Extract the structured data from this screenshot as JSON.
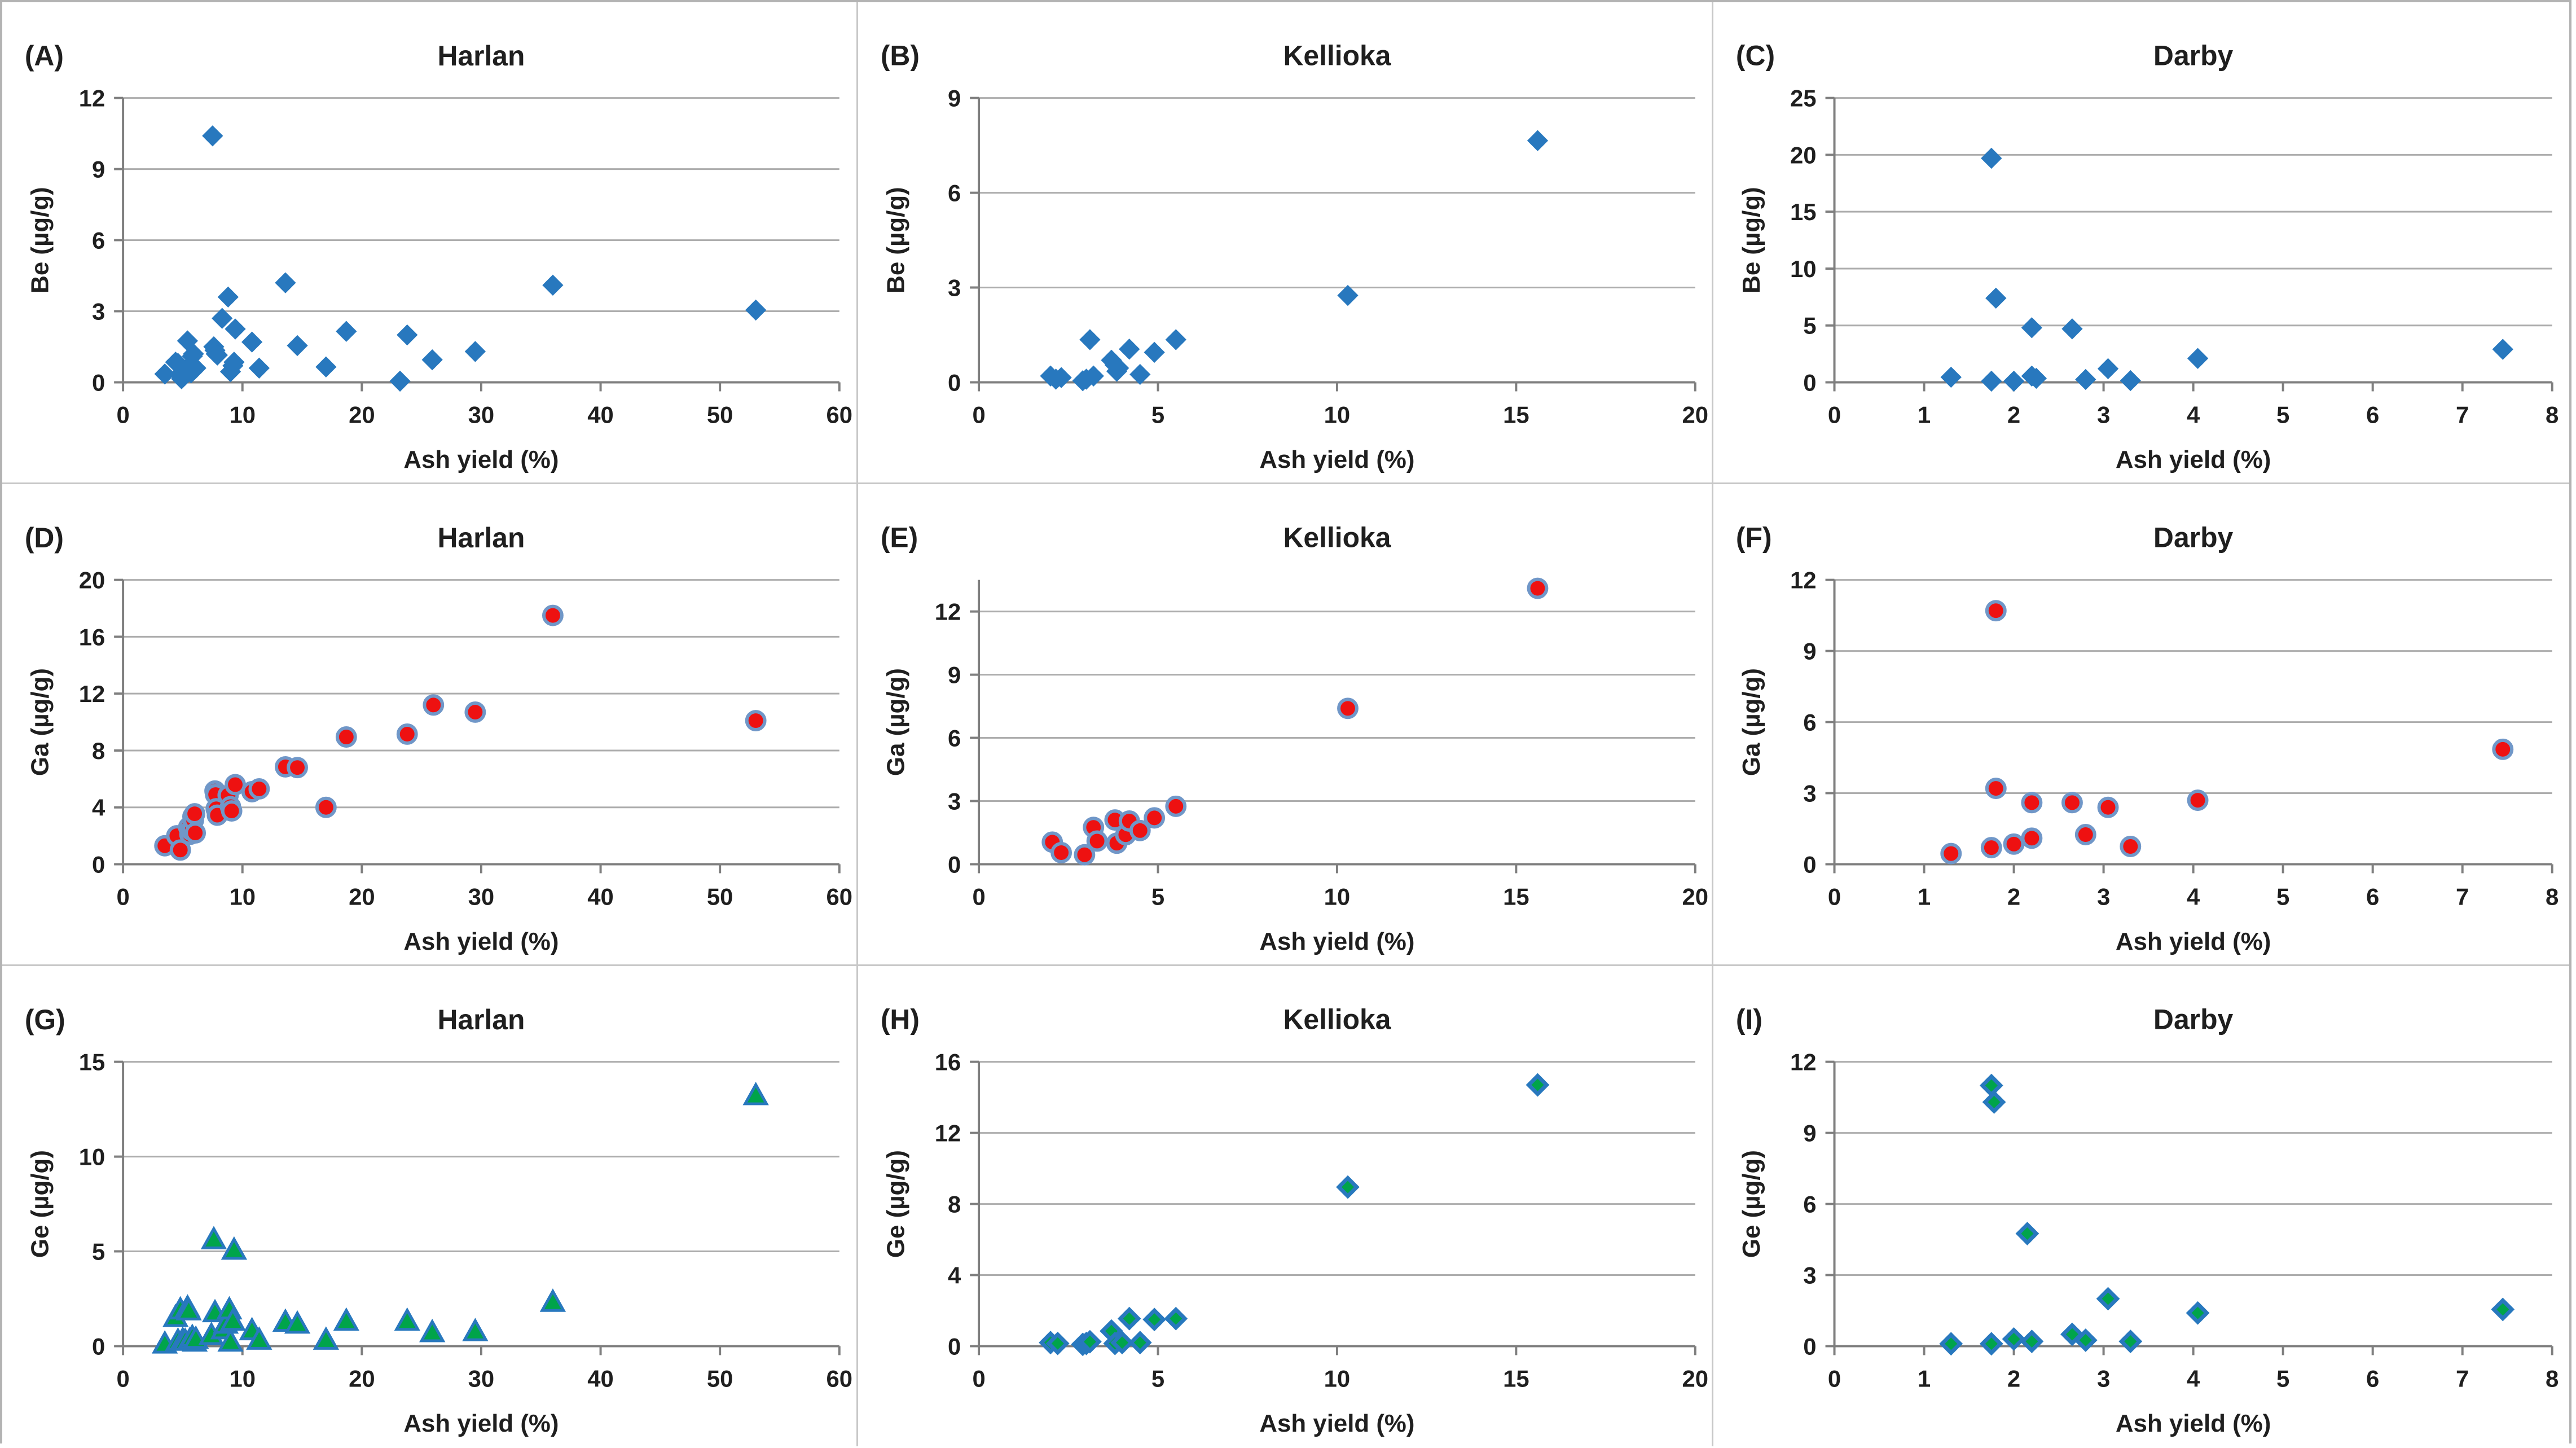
{
  "style": {
    "grid_color": "#adadad",
    "axis_color": "#7f7f7f",
    "text_color": "#1f1f1f",
    "panel_border_color": "#c8c8c8",
    "figure_border_color": "#b3b3b3",
    "marker_blue": "#2878be",
    "marker_red": "#ee1111",
    "marker_red_outline": "#7097c8",
    "marker_green": "#00a44a",
    "marker_green_outline": "#2878be"
  },
  "chart_data": [
    {
      "type": "scatter",
      "panel_label": "(A)",
      "title": "Harlan",
      "xlabel": "Ash yield (%)",
      "ylabel": "Be (µg/g)",
      "xlim": [
        0,
        60
      ],
      "ylim": [
        0,
        12
      ],
      "xticks": [
        0,
        10,
        20,
        30,
        40,
        50,
        60
      ],
      "yticks": [
        0,
        3,
        6,
        9,
        12
      ],
      "grid": true,
      "legend": "none",
      "marker": {
        "shape": "diamond",
        "fill": "#2878be",
        "stroke": "#2878be",
        "stroke_width": 1,
        "size": 18
      },
      "points": [
        [
          3.5,
          0.35
        ],
        [
          4.4,
          0.85
        ],
        [
          4.6,
          0.8
        ],
        [
          4.8,
          0.3
        ],
        [
          4.9,
          0.15
        ],
        [
          5.0,
          0.45
        ],
        [
          5.2,
          0.3
        ],
        [
          5.3,
          0.55
        ],
        [
          5.4,
          1.75
        ],
        [
          5.5,
          0.65
        ],
        [
          5.7,
          0.4
        ],
        [
          5.8,
          1.1
        ],
        [
          5.9,
          1.2
        ],
        [
          6.0,
          0.55
        ],
        [
          6.1,
          0.6
        ],
        [
          7.5,
          10.4
        ],
        [
          7.6,
          1.5
        ],
        [
          7.7,
          1.35
        ],
        [
          7.8,
          1.2
        ],
        [
          7.9,
          1.15
        ],
        [
          8.3,
          2.7
        ],
        [
          8.8,
          3.6
        ],
        [
          9.0,
          0.45
        ],
        [
          9.2,
          0.7
        ],
        [
          9.3,
          0.85
        ],
        [
          9.4,
          2.25
        ],
        [
          10.8,
          1.7
        ],
        [
          11.4,
          0.6
        ],
        [
          13.6,
          4.2
        ],
        [
          14.6,
          1.55
        ],
        [
          17.0,
          0.65
        ],
        [
          18.7,
          2.15
        ],
        [
          23.2,
          0.05
        ],
        [
          23.8,
          2.0
        ],
        [
          25.9,
          0.95
        ],
        [
          29.5,
          1.3
        ],
        [
          36.0,
          4.1
        ],
        [
          53.0,
          3.05
        ]
      ]
    },
    {
      "type": "scatter",
      "panel_label": "(B)",
      "title": "Kellioka",
      "xlabel": "Ash yield (%)",
      "ylabel": "Be (µg/g)",
      "xlim": [
        0,
        20
      ],
      "ylim": [
        0,
        9
      ],
      "xticks": [
        0,
        5,
        10,
        15,
        20
      ],
      "yticks": [
        0,
        3,
        6,
        9
      ],
      "grid": true,
      "legend": "none",
      "marker": {
        "shape": "diamond",
        "fill": "#2878be",
        "stroke": "#2878be",
        "stroke_width": 1,
        "size": 18
      },
      "points": [
        [
          2.0,
          0.2
        ],
        [
          2.15,
          0.1
        ],
        [
          2.3,
          0.15
        ],
        [
          2.9,
          0.05
        ],
        [
          3.0,
          0.1
        ],
        [
          3.1,
          1.35
        ],
        [
          3.2,
          0.2
        ],
        [
          3.7,
          0.7
        ],
        [
          3.8,
          0.55
        ],
        [
          3.85,
          0.35
        ],
        [
          3.9,
          0.45
        ],
        [
          4.2,
          1.05
        ],
        [
          4.5,
          0.25
        ],
        [
          4.9,
          0.95
        ],
        [
          5.5,
          1.35
        ],
        [
          10.3,
          2.75
        ],
        [
          15.6,
          7.65
        ]
      ]
    },
    {
      "type": "scatter",
      "panel_label": "(C)",
      "title": "Darby",
      "xlabel": "Ash yield (%)",
      "ylabel": "Be (µg/g)",
      "xlim": [
        0,
        8
      ],
      "ylim": [
        0,
        25
      ],
      "xticks": [
        0,
        1,
        2,
        3,
        4,
        5,
        6,
        7,
        8
      ],
      "yticks": [
        0,
        5,
        10,
        15,
        20,
        25
      ],
      "grid": true,
      "legend": "none",
      "marker": {
        "shape": "diamond",
        "fill": "#2878be",
        "stroke": "#2878be",
        "stroke_width": 1,
        "size": 18
      },
      "points": [
        [
          1.3,
          0.45
        ],
        [
          1.75,
          19.7
        ],
        [
          1.75,
          0.1
        ],
        [
          1.8,
          7.4
        ],
        [
          2.0,
          0.1
        ],
        [
          2.2,
          4.8
        ],
        [
          2.2,
          0.55
        ],
        [
          2.25,
          0.35
        ],
        [
          2.65,
          4.7
        ],
        [
          2.8,
          0.25
        ],
        [
          3.05,
          1.2
        ],
        [
          3.3,
          0.15
        ],
        [
          4.05,
          2.1
        ],
        [
          7.45,
          2.9
        ]
      ]
    },
    {
      "type": "scatter",
      "panel_label": "(D)",
      "title": "Harlan",
      "xlabel": "Ash yield (%)",
      "ylabel": "Ga (µg/g)",
      "xlim": [
        0,
        60
      ],
      "ylim": [
        0,
        20
      ],
      "xticks": [
        0,
        10,
        20,
        30,
        40,
        50,
        60
      ],
      "yticks": [
        0,
        4,
        8,
        12,
        16,
        20
      ],
      "grid": true,
      "legend": "none",
      "marker": {
        "shape": "circle",
        "fill": "#ee1111",
        "stroke": "#7097c8",
        "stroke_width": 6,
        "size": 16
      },
      "points": [
        [
          3.5,
          1.3
        ],
        [
          4.5,
          2.0
        ],
        [
          4.8,
          1.0
        ],
        [
          5.5,
          2.6
        ],
        [
          5.6,
          2.1
        ],
        [
          5.7,
          2.4
        ],
        [
          5.8,
          2.5
        ],
        [
          5.85,
          3.35
        ],
        [
          5.9,
          3.1
        ],
        [
          6.0,
          3.55
        ],
        [
          6.05,
          2.2
        ],
        [
          7.7,
          5.15
        ],
        [
          7.75,
          4.9
        ],
        [
          7.8,
          3.9
        ],
        [
          7.9,
          3.45
        ],
        [
          8.8,
          4.85
        ],
        [
          9.0,
          4.05
        ],
        [
          9.1,
          3.75
        ],
        [
          9.4,
          5.6
        ],
        [
          10.8,
          5.1
        ],
        [
          11.4,
          5.3
        ],
        [
          13.6,
          6.85
        ],
        [
          14.6,
          6.8
        ],
        [
          17.0,
          4.0
        ],
        [
          18.7,
          8.95
        ],
        [
          23.8,
          9.15
        ],
        [
          26.0,
          11.2
        ],
        [
          29.5,
          10.7
        ],
        [
          36.0,
          17.5
        ],
        [
          53.0,
          10.1
        ]
      ]
    },
    {
      "type": "scatter",
      "panel_label": "(E)",
      "title": "Kellioka",
      "xlabel": "Ash yield (%)",
      "ylabel": "Ga (µg/g)",
      "xlim": [
        0,
        20
      ],
      "ylim": [
        0,
        13.5
      ],
      "xticks": [
        0,
        5,
        10,
        15,
        20
      ],
      "yticks": [
        0,
        3,
        6,
        9,
        12
      ],
      "grid": true,
      "legend": "none",
      "marker": {
        "shape": "circle",
        "fill": "#ee1111",
        "stroke": "#7097c8",
        "stroke_width": 6,
        "size": 16
      },
      "points": [
        [
          2.05,
          1.05
        ],
        [
          2.3,
          0.55
        ],
        [
          2.95,
          0.45
        ],
        [
          3.2,
          1.75
        ],
        [
          3.3,
          1.1
        ],
        [
          3.8,
          2.1
        ],
        [
          3.85,
          1.0
        ],
        [
          4.1,
          1.4
        ],
        [
          4.2,
          2.05
        ],
        [
          4.5,
          1.6
        ],
        [
          4.9,
          2.2
        ],
        [
          5.5,
          2.75
        ],
        [
          10.3,
          7.4
        ],
        [
          15.6,
          13.1
        ]
      ]
    },
    {
      "type": "scatter",
      "panel_label": "(F)",
      "title": "Darby",
      "xlabel": "Ash yield (%)",
      "ylabel": "Ga (µg/g)",
      "xlim": [
        0,
        8
      ],
      "ylim": [
        0,
        12
      ],
      "xticks": [
        0,
        1,
        2,
        3,
        4,
        5,
        6,
        7,
        8
      ],
      "yticks": [
        0,
        3,
        6,
        9,
        12
      ],
      "grid": true,
      "legend": "none",
      "marker": {
        "shape": "circle",
        "fill": "#ee1111",
        "stroke": "#7097c8",
        "stroke_width": 6,
        "size": 16
      },
      "points": [
        [
          1.3,
          0.45
        ],
        [
          1.75,
          0.7
        ],
        [
          1.8,
          10.7
        ],
        [
          1.8,
          3.2
        ],
        [
          2.0,
          0.85
        ],
        [
          2.2,
          2.6
        ],
        [
          2.2,
          1.1
        ],
        [
          2.65,
          2.6
        ],
        [
          2.8,
          1.25
        ],
        [
          3.05,
          2.4
        ],
        [
          3.3,
          0.75
        ],
        [
          4.05,
          2.7
        ],
        [
          7.45,
          4.85
        ]
      ]
    },
    {
      "type": "scatter",
      "panel_label": "(G)",
      "title": "Harlan",
      "xlabel": "Ash yield (%)",
      "ylabel": "Ge (µg/g)",
      "xlim": [
        0,
        60
      ],
      "ylim": [
        0,
        15
      ],
      "xticks": [
        0,
        10,
        20,
        30,
        40,
        50,
        60
      ],
      "yticks": [
        0,
        5,
        10,
        15
      ],
      "grid": true,
      "legend": "none",
      "marker": {
        "shape": "triangle",
        "fill": "#00a44a",
        "stroke": "#2878be",
        "stroke_width": 5,
        "size": 20
      },
      "points": [
        [
          3.5,
          0.1
        ],
        [
          4.4,
          1.5
        ],
        [
          4.6,
          0.25
        ],
        [
          4.8,
          1.9
        ],
        [
          5.0,
          0.3
        ],
        [
          5.2,
          0.25
        ],
        [
          5.4,
          2.0
        ],
        [
          5.5,
          1.85
        ],
        [
          5.6,
          0.3
        ],
        [
          5.8,
          0.45
        ],
        [
          6.0,
          0.2
        ],
        [
          6.1,
          0.35
        ],
        [
          7.4,
          0.55
        ],
        [
          7.6,
          5.6
        ],
        [
          7.7,
          1.75
        ],
        [
          8.4,
          0.85
        ],
        [
          8.6,
          1.15
        ],
        [
          8.9,
          1.9
        ],
        [
          9.0,
          0.2
        ],
        [
          9.2,
          1.3
        ],
        [
          9.3,
          5.05
        ],
        [
          10.8,
          0.8
        ],
        [
          11.4,
          0.3
        ],
        [
          13.6,
          1.25
        ],
        [
          14.6,
          1.15
        ],
        [
          17.0,
          0.3
        ],
        [
          18.7,
          1.3
        ],
        [
          23.8,
          1.3
        ],
        [
          25.9,
          0.7
        ],
        [
          29.5,
          0.75
        ],
        [
          36.0,
          2.3
        ],
        [
          53.0,
          13.2
        ]
      ]
    },
    {
      "type": "scatter",
      "panel_label": "(H)",
      "title": "Kellioka",
      "xlabel": "Ash yield (%)",
      "ylabel": "Ge (µg/g)",
      "xlim": [
        0,
        20
      ],
      "ylim": [
        0,
        16
      ],
      "xticks": [
        0,
        5,
        10,
        15,
        20
      ],
      "yticks": [
        0,
        4,
        8,
        12,
        16
      ],
      "grid": true,
      "legend": "none",
      "marker": {
        "shape": "diamond",
        "fill": "#00a44a",
        "stroke": "#2878be",
        "stroke_width": 7,
        "size": 16
      },
      "points": [
        [
          2.0,
          0.2
        ],
        [
          2.2,
          0.15
        ],
        [
          2.9,
          0.1
        ],
        [
          3.0,
          0.15
        ],
        [
          3.1,
          0.25
        ],
        [
          3.7,
          0.85
        ],
        [
          3.8,
          0.15
        ],
        [
          4.0,
          0.2
        ],
        [
          4.2,
          1.55
        ],
        [
          4.5,
          0.2
        ],
        [
          4.9,
          1.5
        ],
        [
          5.5,
          1.55
        ],
        [
          10.3,
          8.95
        ],
        [
          15.6,
          14.7
        ]
      ]
    },
    {
      "type": "scatter",
      "panel_label": "(I)",
      "title": "Darby",
      "xlabel": "Ash yield (%)",
      "ylabel": "Ge (µg/g)",
      "xlim": [
        0,
        8
      ],
      "ylim": [
        0,
        12
      ],
      "xticks": [
        0,
        1,
        2,
        3,
        4,
        5,
        6,
        7,
        8
      ],
      "yticks": [
        0,
        3,
        6,
        9,
        12
      ],
      "grid": true,
      "legend": "none",
      "marker": {
        "shape": "diamond",
        "fill": "#00a44a",
        "stroke": "#2878be",
        "stroke_width": 7,
        "size": 16
      },
      "points": [
        [
          1.3,
          0.1
        ],
        [
          1.75,
          11.0
        ],
        [
          1.78,
          10.3
        ],
        [
          1.75,
          0.1
        ],
        [
          2.0,
          0.3
        ],
        [
          2.15,
          4.75
        ],
        [
          2.2,
          0.2
        ],
        [
          2.65,
          0.5
        ],
        [
          2.8,
          0.25
        ],
        [
          3.05,
          2.0
        ],
        [
          3.3,
          0.2
        ],
        [
          4.05,
          1.4
        ],
        [
          7.45,
          1.55
        ]
      ]
    }
  ]
}
